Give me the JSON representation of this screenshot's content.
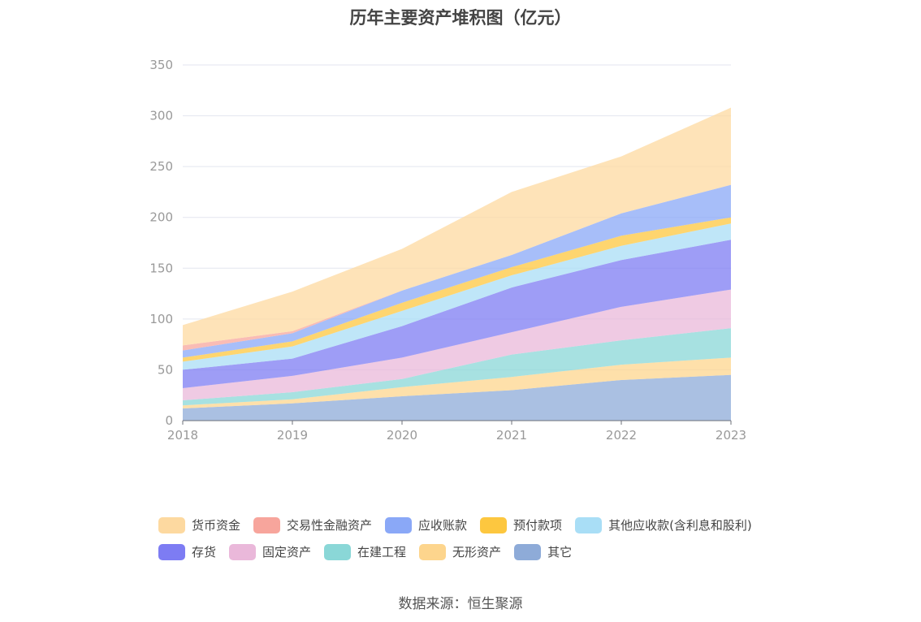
{
  "chart_data": {
    "type": "area",
    "title": "历年主要资产堆积图（亿元）",
    "categories": [
      "2018",
      "2019",
      "2020",
      "2021",
      "2022",
      "2023"
    ],
    "ylim": [
      0,
      350
    ],
    "yticks": [
      0,
      50,
      100,
      150,
      200,
      250,
      300,
      350
    ],
    "grid": true,
    "legend_position": "bottom",
    "series": [
      {
        "name": "其它",
        "color": "#8eabd8",
        "values": [
          12,
          17,
          24,
          30,
          40,
          45
        ]
      },
      {
        "name": "无形资产",
        "color": "#fdd58d",
        "values": [
          3,
          4,
          9,
          13,
          15,
          17
        ]
      },
      {
        "name": "在建工程",
        "color": "#8ad7d7",
        "values": [
          5,
          7,
          8,
          22,
          24,
          29
        ]
      },
      {
        "name": "固定资产",
        "color": "#eab8da",
        "values": [
          12,
          16,
          21,
          22,
          33,
          38
        ]
      },
      {
        "name": "存货",
        "color": "#7d7cf3",
        "values": [
          18,
          17,
          31,
          44,
          46,
          49
        ]
      },
      {
        "name": "其他应收款(含利息和股利)",
        "color": "#a9def6",
        "values": [
          8,
          12,
          15,
          12,
          14,
          16
        ]
      },
      {
        "name": "预付款项",
        "color": "#fdc73f",
        "values": [
          4,
          5,
          8,
          8,
          10,
          6
        ]
      },
      {
        "name": "应收账款",
        "color": "#8aa8f7",
        "values": [
          7,
          8,
          12,
          12,
          22,
          32
        ]
      },
      {
        "name": "交易性金融资产",
        "color": "#f7a59c",
        "values": [
          5,
          2,
          0,
          0,
          0,
          0
        ]
      },
      {
        "name": "货币资金",
        "color": "#fdd9a0",
        "values": [
          20,
          39,
          41,
          62,
          56,
          76
        ]
      }
    ]
  },
  "legend": {
    "row1": [
      {
        "name": "货币资金",
        "color": "#fdd9a0"
      },
      {
        "name": "交易性金融资产",
        "color": "#f7a59c"
      },
      {
        "name": "应收账款",
        "color": "#8aa8f7"
      },
      {
        "name": "预付款项",
        "color": "#fdc73f"
      },
      {
        "name": "其他应收款(含利息和股利)",
        "color": "#a9def6"
      }
    ],
    "row2": [
      {
        "name": "存货",
        "color": "#7d7cf3"
      },
      {
        "name": "固定资产",
        "color": "#eab8da"
      },
      {
        "name": "在建工程",
        "color": "#8ad7d7"
      },
      {
        "name": "无形资产",
        "color": "#fdd58d"
      },
      {
        "name": "其它",
        "color": "#8eabd8"
      }
    ]
  },
  "source": "数据来源：恒生聚源"
}
